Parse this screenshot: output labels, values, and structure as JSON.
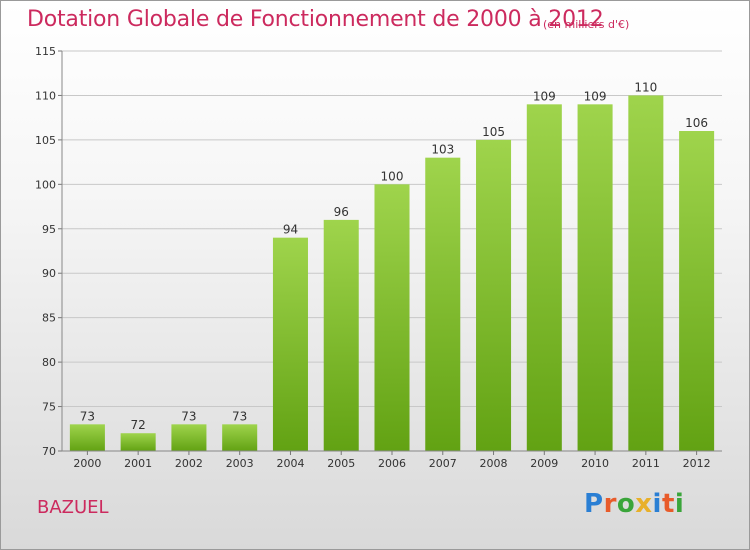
{
  "header": {
    "title": "Dotation Globale de Fonctionnement de 2000 à 2012",
    "subtitle": "(en milliers d'€)"
  },
  "footer": {
    "commune": "BAZUEL",
    "logo": "Proxiti"
  },
  "colors": {
    "title": "#cc2a5e",
    "bar_top": "#9fd44c",
    "bar_bottom": "#62a213",
    "grid": "#c8c8c8"
  },
  "chart_data": {
    "type": "bar",
    "categories": [
      "2000",
      "2001",
      "2002",
      "2003",
      "2004",
      "2005",
      "2006",
      "2007",
      "2008",
      "2009",
      "2010",
      "2011",
      "2012"
    ],
    "values": [
      73,
      72,
      73,
      73,
      94,
      96,
      100,
      103,
      105,
      109,
      109,
      110,
      106
    ],
    "data_labels": [
      "73",
      "72",
      "73",
      "73",
      "94",
      "96",
      "100",
      "103",
      "105",
      "109",
      "109",
      "110",
      "106"
    ],
    "yticks": [
      70,
      75,
      80,
      85,
      90,
      95,
      100,
      105,
      110,
      115
    ],
    "ylim": [
      70,
      115
    ],
    "grid": true,
    "legend": "none"
  }
}
